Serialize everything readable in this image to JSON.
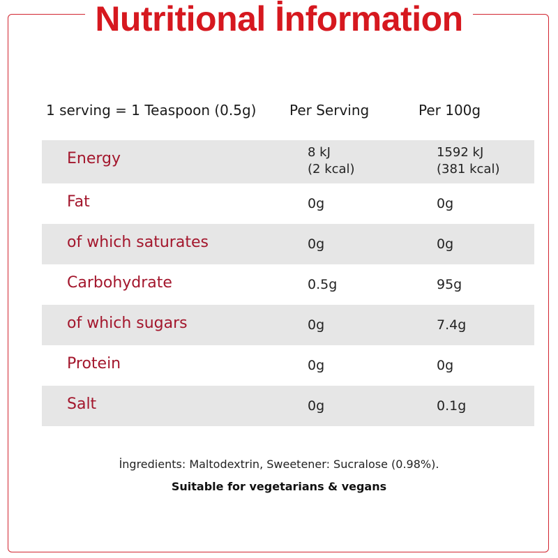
{
  "title": "Nutritional İnformation",
  "header": {
    "serving": "1 serving = 1 Teaspoon (0.5g)",
    "col_per_serving": "Per Serving",
    "col_per_100g": "Per 100g"
  },
  "rows": [
    {
      "name": "Energy",
      "per_serving": [
        "8 kJ",
        "(2 kcal)"
      ],
      "per_100g": [
        "1592 kJ",
        "(381 kcal)"
      ]
    },
    {
      "name": "Fat",
      "per_serving": "0g",
      "per_100g": "0g"
    },
    {
      "name": "of which saturates",
      "per_serving": "0g",
      "per_100g": "0g"
    },
    {
      "name": "Carbohydrate",
      "per_serving": "0.5g",
      "per_100g": "95g"
    },
    {
      "name": "of which sugars",
      "per_serving": "0g",
      "per_100g": "7.4g"
    },
    {
      "name": "Protein",
      "per_serving": "0g",
      "per_100g": "0g"
    },
    {
      "name": "Salt",
      "per_serving": "0g",
      "per_100g": "0.1g"
    }
  ],
  "ingredients": "İngredients: Maltodextrin, Sweetener: Sucralose (0.98%).",
  "suitable": "Suitable for vegetarians & vegans",
  "colors": {
    "accent": "#d6181f",
    "label": "#a3162c",
    "shade": "#e6e6e6"
  }
}
